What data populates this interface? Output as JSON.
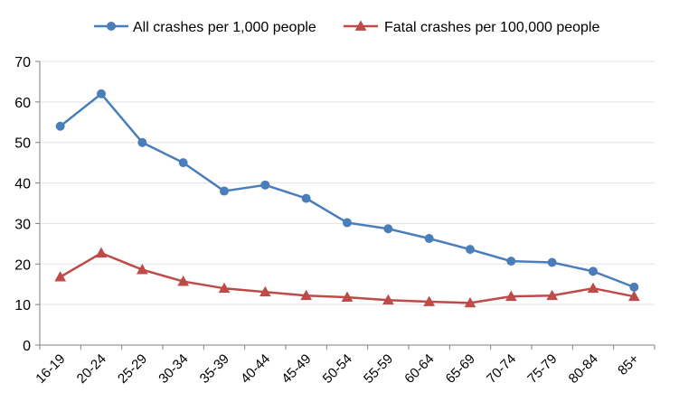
{
  "chart_data": {
    "type": "line",
    "categories": [
      "16-19",
      "20-24",
      "25-29",
      "30-34",
      "35-39",
      "40-44",
      "45-49",
      "50-54",
      "55-59",
      "60-64",
      "65-69",
      "70-74",
      "75-79",
      "80-84",
      "85+"
    ],
    "series": [
      {
        "name": "All crashes per 1,000 people",
        "color": "#4a7ebb",
        "marker": "circle",
        "values": [
          54,
          62,
          50,
          45,
          38,
          39.5,
          36.2,
          30.2,
          28.7,
          26.3,
          23.6,
          20.7,
          20.4,
          18.2,
          14.3
        ]
      },
      {
        "name": "Fatal crashes per 100,000 people",
        "color": "#be4b48",
        "marker": "triangle",
        "values": [
          16.8,
          22.7,
          18.6,
          15.7,
          14.0,
          13.1,
          12.2,
          11.8,
          11.1,
          10.7,
          10.4,
          12.0,
          12.2,
          14.0,
          12.0
        ]
      }
    ],
    "yticks": [
      0,
      10,
      20,
      30,
      40,
      50,
      60,
      70
    ],
    "ylim": [
      0,
      70
    ],
    "title": "",
    "xlabel": "",
    "ylabel": "",
    "grid": true,
    "legend": "top"
  }
}
